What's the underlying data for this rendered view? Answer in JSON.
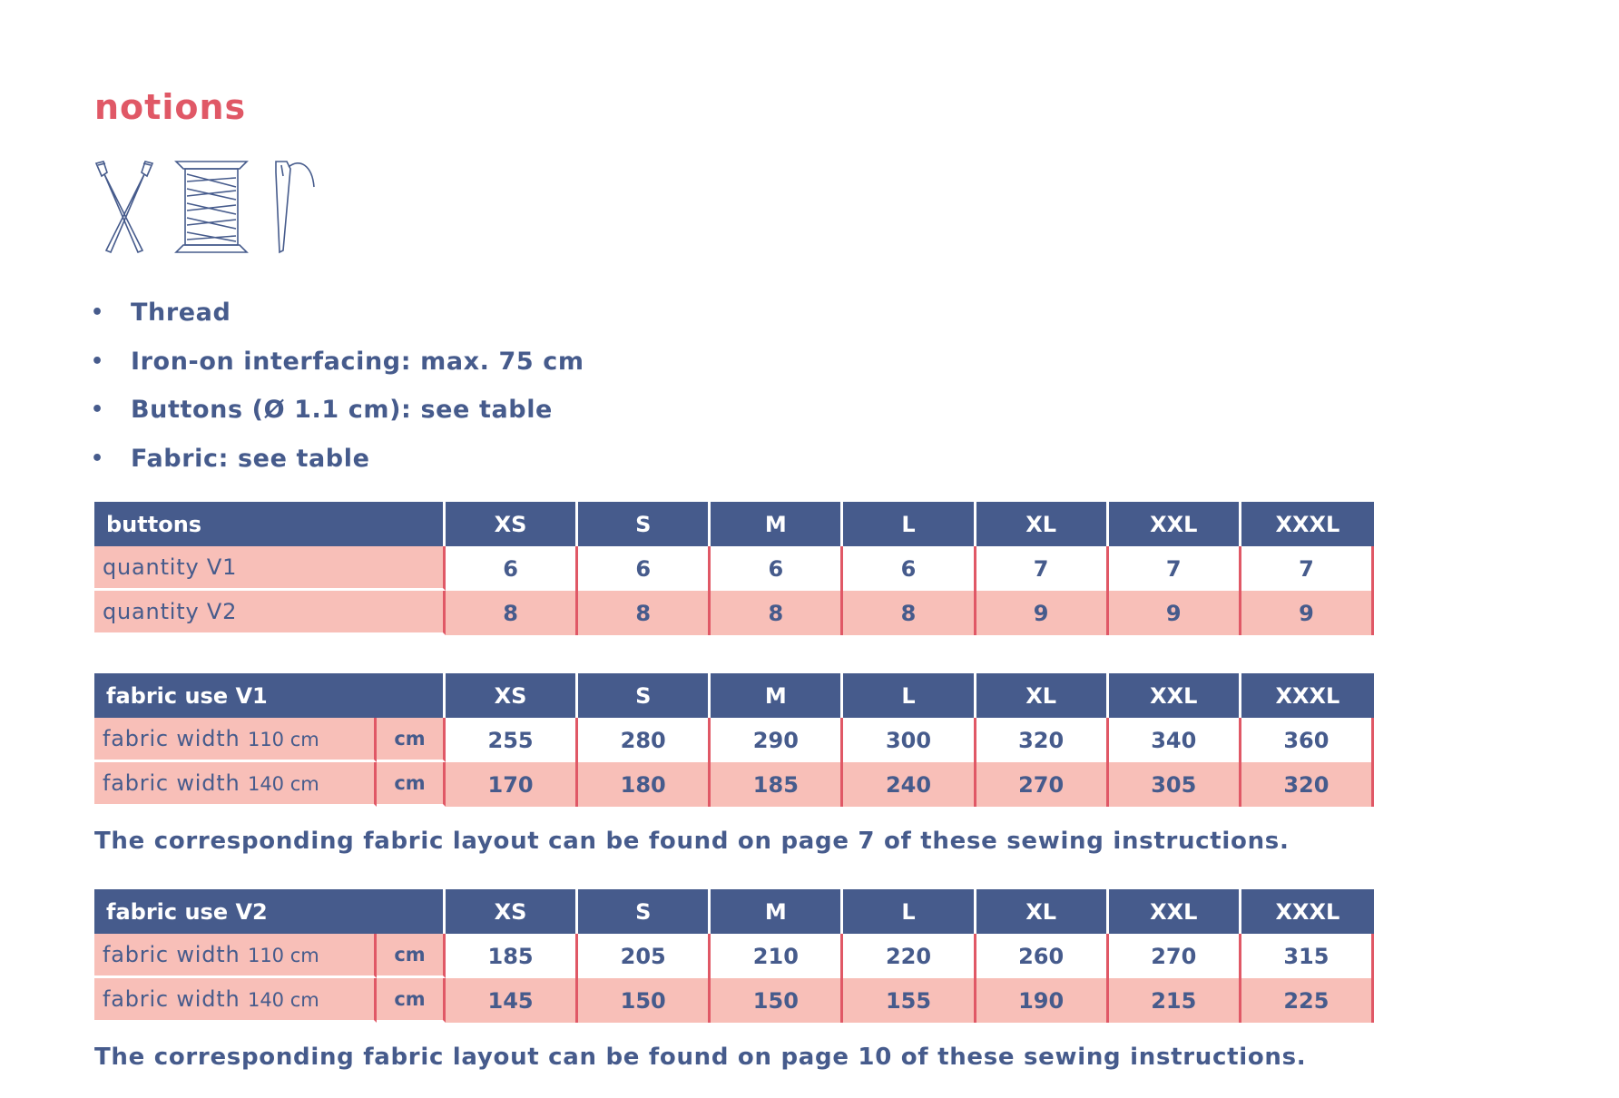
{
  "heading": "notions",
  "icons": [
    "scissors-icon",
    "thread-spool-icon",
    "needle-icon"
  ],
  "colors": {
    "accent": "#e05866",
    "navy": "#465b8c",
    "pink": "#f8bfb8"
  },
  "notions": [
    "Thread",
    "Iron-on interfacing: max. 75 cm",
    "Buttons (Ø 1.1 cm): see table",
    "Fabric: see table"
  ],
  "bullet": "•",
  "sizes": [
    "XS",
    "S",
    "M",
    "L",
    "XL",
    "XXL",
    "XXXL"
  ],
  "buttons_table": {
    "title": "buttons",
    "rows": [
      {
        "label": "quantity V1",
        "values": [
          "6",
          "6",
          "6",
          "6",
          "7",
          "7",
          "7"
        ]
      },
      {
        "label": "quantity V2",
        "values": [
          "8",
          "8",
          "8",
          "8",
          "9",
          "9",
          "9"
        ]
      }
    ]
  },
  "fabric_v1": {
    "title": "fabric use V1",
    "rows": [
      {
        "label": "fabric width",
        "width": "110 cm",
        "unit": "cm",
        "values": [
          "255",
          "280",
          "290",
          "300",
          "320",
          "340",
          "360"
        ]
      },
      {
        "label": "fabric width",
        "width": "140 cm",
        "unit": "cm",
        "values": [
          "170",
          "180",
          "185",
          "240",
          "270",
          "305",
          "320"
        ]
      }
    ],
    "note": "The corresponding fabric layout can be found on page 7 of these sewing instructions."
  },
  "fabric_v2": {
    "title": "fabric use V2",
    "rows": [
      {
        "label": "fabric width",
        "width": "110 cm",
        "unit": "cm",
        "values": [
          "185",
          "205",
          "210",
          "220",
          "260",
          "270",
          "315"
        ]
      },
      {
        "label": "fabric width",
        "width": "140 cm",
        "unit": "cm",
        "values": [
          "145",
          "150",
          "150",
          "155",
          "190",
          "215",
          "225"
        ]
      }
    ],
    "note": "The corresponding fabric layout can be found on page 10 of these sewing instructions."
  }
}
